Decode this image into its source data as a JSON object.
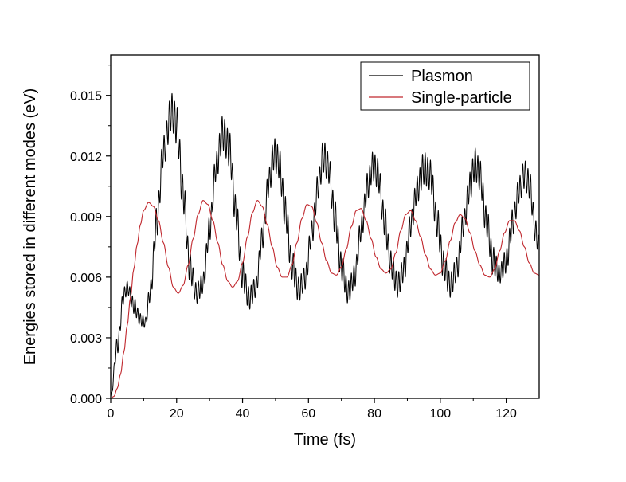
{
  "chart_data": {
    "type": "line",
    "title": "",
    "xlabel": "Time (fs)",
    "ylabel": "Energies stored in different modes (eV)",
    "xlim": [
      0,
      130
    ],
    "ylim": [
      0,
      0.017
    ],
    "x_ticks": [
      0,
      20,
      40,
      60,
      80,
      100,
      120
    ],
    "y_ticks": [
      0.0,
      0.003,
      0.006,
      0.009,
      0.012,
      0.015
    ],
    "x_tick_labels": [
      "0",
      "20",
      "40",
      "60",
      "80",
      "100",
      "120"
    ],
    "y_tick_labels": [
      "0.000",
      "0.003",
      "0.006",
      "0.009",
      "0.012",
      "0.015"
    ],
    "grid": false,
    "legend": {
      "position": "top-right"
    },
    "series": [
      {
        "name": "Plasmon",
        "color": "#000000",
        "envelope_period_fs": 15.2,
        "fast_oscillation_period_fs": 0.8,
        "x": [
          0,
          2,
          4,
          5,
          7,
          9,
          10.5,
          12,
          14,
          16,
          18.5,
          20,
          22,
          24,
          26,
          28,
          30,
          32,
          34,
          36,
          38,
          40,
          42,
          44,
          46,
          48,
          49.5,
          51,
          53,
          55,
          57,
          59,
          61,
          63,
          64.5,
          66,
          68,
          70,
          72,
          74,
          76,
          78,
          79.5,
          81,
          83,
          85,
          87,
          89,
          91,
          93,
          95,
          97,
          99,
          101,
          103,
          105,
          107,
          109,
          110.5,
          112,
          114,
          116,
          118,
          120,
          122,
          124,
          125.5,
          127,
          129,
          130
        ],
        "y_upper": [
          0.0002,
          0.003,
          0.0055,
          0.0058,
          0.005,
          0.0042,
          0.004,
          0.0058,
          0.0095,
          0.013,
          0.0151,
          0.0145,
          0.011,
          0.0072,
          0.0057,
          0.0062,
          0.009,
          0.0122,
          0.014,
          0.0132,
          0.01,
          0.0068,
          0.0055,
          0.006,
          0.0085,
          0.0114,
          0.0129,
          0.0125,
          0.01,
          0.0073,
          0.006,
          0.0065,
          0.0088,
          0.0112,
          0.0128,
          0.0122,
          0.0098,
          0.0072,
          0.0058,
          0.0066,
          0.009,
          0.0112,
          0.0122,
          0.0119,
          0.0096,
          0.0073,
          0.0062,
          0.007,
          0.0092,
          0.011,
          0.0122,
          0.0118,
          0.0095,
          0.0073,
          0.0062,
          0.007,
          0.0092,
          0.0112,
          0.0124,
          0.0118,
          0.0095,
          0.0075,
          0.0066,
          0.0074,
          0.0094,
          0.011,
          0.0118,
          0.0113,
          0.0088,
          0.008
        ],
        "y_lower": [
          0.0,
          0.0022,
          0.0047,
          0.0052,
          0.0042,
          0.0036,
          0.0035,
          0.0048,
          0.008,
          0.0115,
          0.0133,
          0.0126,
          0.0092,
          0.0058,
          0.0047,
          0.0052,
          0.0078,
          0.0108,
          0.0123,
          0.0115,
          0.0084,
          0.0054,
          0.0044,
          0.005,
          0.0074,
          0.01,
          0.0113,
          0.0109,
          0.0084,
          0.0059,
          0.0048,
          0.0054,
          0.0076,
          0.0099,
          0.0112,
          0.0107,
          0.0082,
          0.0058,
          0.0047,
          0.0055,
          0.0078,
          0.0099,
          0.0108,
          0.0104,
          0.0081,
          0.006,
          0.005,
          0.0058,
          0.008,
          0.0097,
          0.0106,
          0.0103,
          0.008,
          0.0059,
          0.005,
          0.0058,
          0.008,
          0.0098,
          0.0108,
          0.0103,
          0.008,
          0.0061,
          0.0057,
          0.0062,
          0.0081,
          0.0097,
          0.0104,
          0.0099,
          0.0076,
          0.007
        ]
      },
      {
        "name": "Single-particle",
        "color": "#c0272d",
        "x": [
          0,
          1,
          2,
          3,
          4,
          5,
          6,
          7,
          8,
          9,
          10,
          11.5,
          13,
          14.5,
          16,
          17.5,
          19,
          20.5,
          22,
          23.5,
          25,
          26.5,
          28,
          29.5,
          31,
          32.5,
          34,
          35.5,
          37,
          38.5,
          40,
          41.5,
          43,
          44.5,
          46,
          47.5,
          49,
          50.5,
          52,
          53.5,
          55,
          56.5,
          58,
          59.5,
          61,
          62.5,
          64,
          65.5,
          67,
          68.5,
          70,
          71.5,
          73,
          74.5,
          76,
          77.5,
          79,
          80.5,
          82,
          83.5,
          85,
          86.5,
          88,
          89.5,
          91,
          92.5,
          94,
          95.5,
          97,
          98.5,
          100,
          101.5,
          103,
          104.5,
          106,
          107.5,
          109,
          110.5,
          112,
          113.5,
          115,
          116.5,
          118,
          119.5,
          121,
          122.5,
          124,
          125.5,
          127,
          128.5,
          130
        ],
        "y": [
          0.0,
          0.0001,
          0.0005,
          0.0012,
          0.0023,
          0.0036,
          0.005,
          0.0064,
          0.0076,
          0.0086,
          0.0093,
          0.0097,
          0.0095,
          0.0088,
          0.0077,
          0.0065,
          0.0055,
          0.0052,
          0.0056,
          0.0066,
          0.0079,
          0.0091,
          0.0098,
          0.0096,
          0.0088,
          0.0077,
          0.0066,
          0.0058,
          0.0055,
          0.0058,
          0.0067,
          0.008,
          0.0092,
          0.0098,
          0.0095,
          0.0086,
          0.0075,
          0.0065,
          0.006,
          0.006,
          0.0066,
          0.0077,
          0.0089,
          0.0096,
          0.0095,
          0.0087,
          0.0077,
          0.0068,
          0.0062,
          0.0061,
          0.0065,
          0.0074,
          0.0085,
          0.0093,
          0.0094,
          0.0088,
          0.0079,
          0.007,
          0.0064,
          0.0062,
          0.0064,
          0.0072,
          0.0083,
          0.0091,
          0.0093,
          0.0088,
          0.008,
          0.0071,
          0.0064,
          0.0061,
          0.0062,
          0.0068,
          0.0078,
          0.0087,
          0.0091,
          0.0089,
          0.0082,
          0.0073,
          0.0066,
          0.0061,
          0.006,
          0.0064,
          0.0073,
          0.0082,
          0.0088,
          0.0088,
          0.0083,
          0.0075,
          0.0067,
          0.0062,
          0.0061
        ]
      }
    ]
  }
}
